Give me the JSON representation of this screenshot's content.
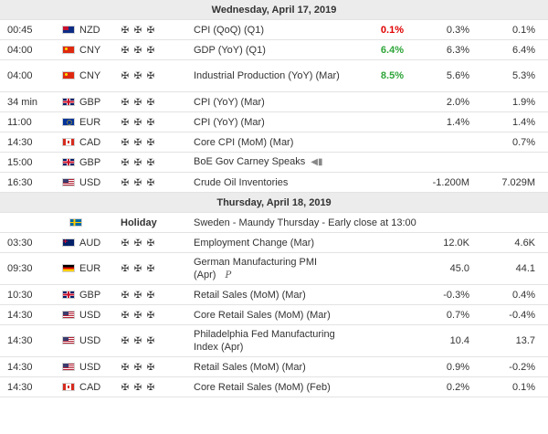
{
  "days": [
    {
      "label": "Wednesday, April 17, 2019",
      "events": [
        {
          "time": "00:45",
          "flag": "nz",
          "currency": "NZD",
          "event": "CPI (QoQ) (Q1)",
          "actual": "0.1%",
          "actual_status": "red",
          "forecast": "0.3%",
          "previous": "0.1%"
        },
        {
          "time": "04:00",
          "flag": "cn",
          "currency": "CNY",
          "event": "GDP (YoY) (Q1)",
          "actual": "6.4%",
          "actual_status": "green",
          "forecast": "6.3%",
          "previous": "6.4%"
        },
        {
          "time": "04:00",
          "flag": "cn",
          "currency": "CNY",
          "event": "Industrial Production (YoY) (Mar)",
          "actual": "8.5%",
          "actual_status": "green",
          "forecast": "5.6%",
          "previous": "5.3%",
          "tall": true
        },
        {
          "time": "34 min",
          "flag": "gb",
          "currency": "GBP",
          "event": "CPI (YoY) (Mar)",
          "actual": "",
          "forecast": "2.0%",
          "previous": "1.9%"
        },
        {
          "time": "11:00",
          "flag": "eu",
          "currency": "EUR",
          "event": "CPI (YoY) (Mar)",
          "actual": "",
          "forecast": "1.4%",
          "previous": "1.4%"
        },
        {
          "time": "14:30",
          "flag": "ca",
          "currency": "CAD",
          "event": "Core CPI (MoM) (Mar)",
          "actual": "",
          "forecast": "",
          "previous": "0.7%"
        },
        {
          "time": "15:00",
          "flag": "gb",
          "currency": "GBP",
          "event": "BoE Gov Carney Speaks",
          "actual": "",
          "forecast": "",
          "previous": "",
          "speaker_icon": "megaphone-icon"
        },
        {
          "time": "16:30",
          "flag": "us",
          "currency": "USD",
          "event": "Crude Oil Inventories",
          "actual": "",
          "forecast": "",
          "previous": "7.029M",
          "extra_value": "-1.200M"
        }
      ]
    },
    {
      "label": "Thursday, April 18, 2019",
      "holiday": {
        "flag": "se",
        "label": "Holiday",
        "text": "Sweden - Maundy Thursday - Early close at 13:00"
      },
      "events": [
        {
          "time": "03:30",
          "flag": "au",
          "currency": "AUD",
          "event": "Employment Change (Mar)",
          "actual": "",
          "forecast": "12.0K",
          "previous": "4.6K"
        },
        {
          "time": "09:30",
          "flag": "de",
          "currency": "EUR",
          "event": "German Manufacturing PMI (Apr)",
          "actual": "",
          "forecast": "45.0",
          "previous": "44.1",
          "tall": true,
          "prelim": "P"
        },
        {
          "time": "10:30",
          "flag": "gb",
          "currency": "GBP",
          "event": "Retail Sales (MoM) (Mar)",
          "actual": "",
          "forecast": "-0.3%",
          "previous": "0.4%"
        },
        {
          "time": "14:30",
          "flag": "us",
          "currency": "USD",
          "event": "Core Retail Sales (MoM) (Mar)",
          "actual": "",
          "forecast": "0.7%",
          "previous": "-0.4%"
        },
        {
          "time": "14:30",
          "flag": "us",
          "currency": "USD",
          "event": "Philadelphia Fed Manufacturing Index (Apr)",
          "actual": "",
          "forecast": "10.4",
          "previous": "13.7",
          "tall": true
        },
        {
          "time": "14:30",
          "flag": "us",
          "currency": "USD",
          "event": "Retail Sales (MoM) (Mar)",
          "actual": "",
          "forecast": "0.9%",
          "previous": "-0.2%"
        },
        {
          "time": "14:30",
          "flag": "ca",
          "currency": "CAD",
          "event": "Core Retail Sales (MoM) (Feb)",
          "actual": "",
          "forecast": "0.2%",
          "previous": "0.1%"
        }
      ]
    }
  ],
  "importance_icon": "bull-icon",
  "colors": {
    "negative": "#e00000",
    "positive": "#2ea539"
  }
}
